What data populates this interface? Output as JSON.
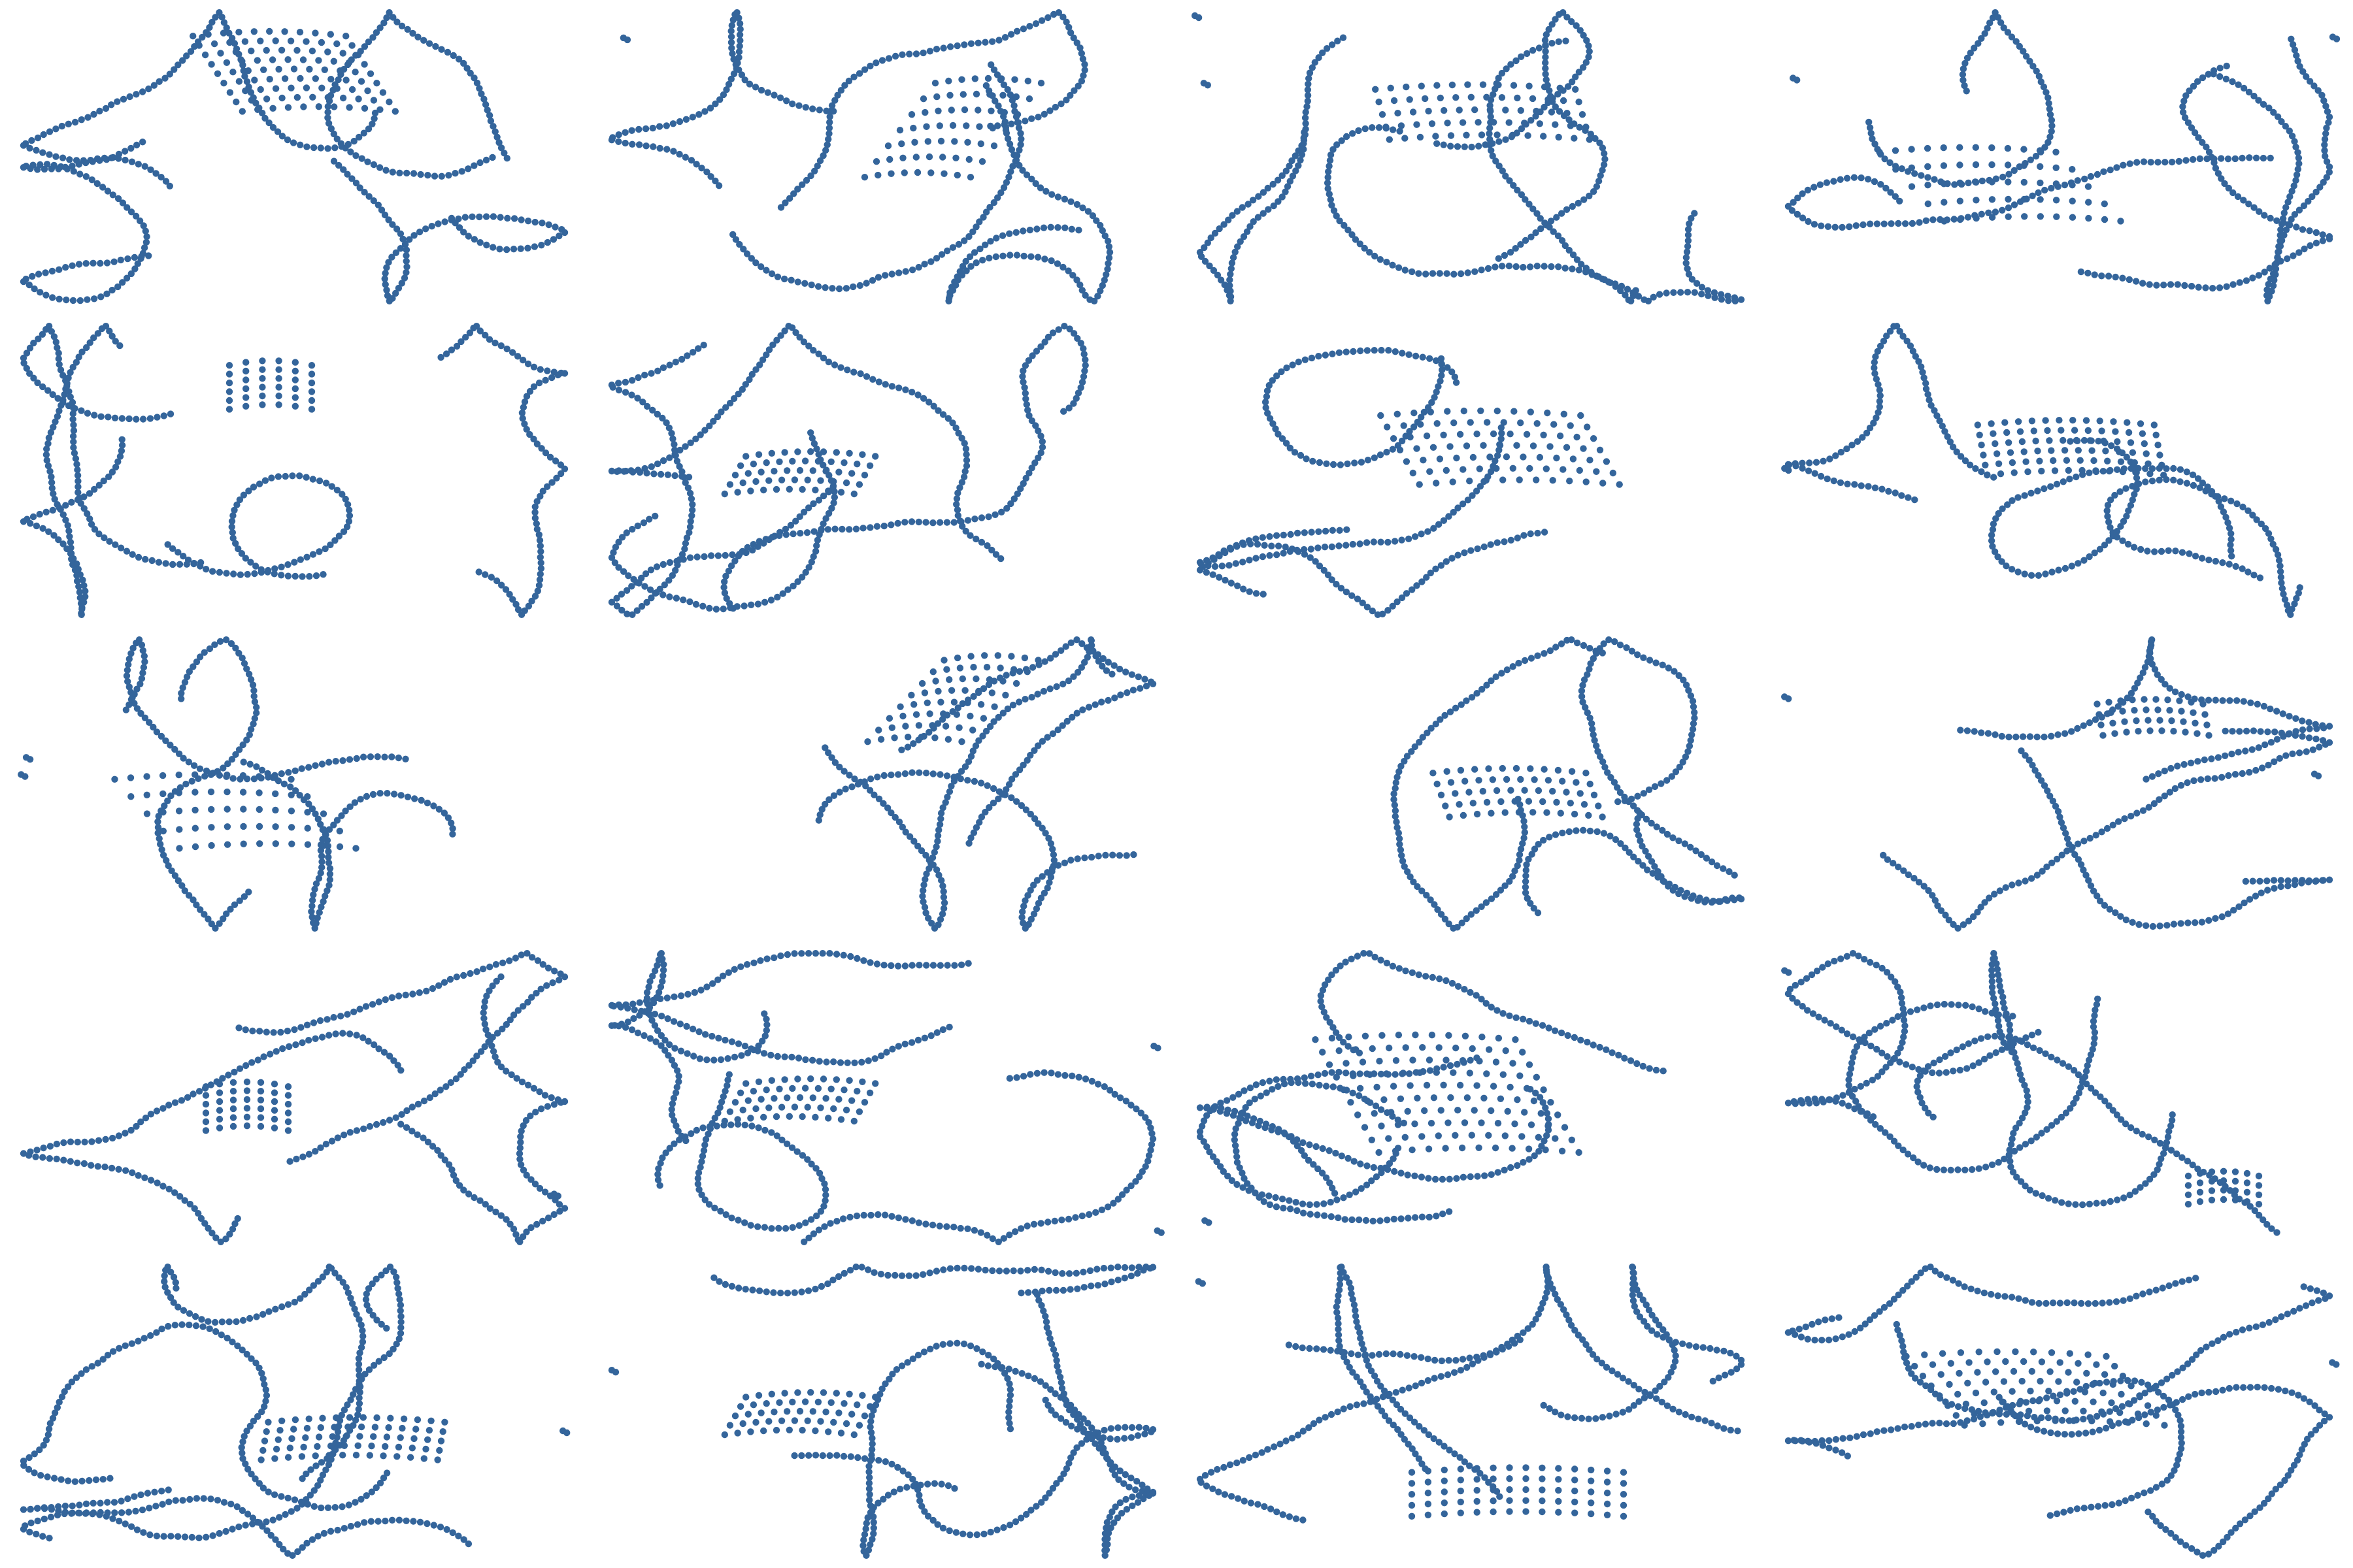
{
  "figure": {
    "rows": 5,
    "cols": 4,
    "node_color": "#34659b",
    "edge_color": "#c9cdd2",
    "background": "#ffffff"
  },
  "panels": [
    {
      "id": "r1c1",
      "dense_region": "diamond-grid"
    },
    {
      "id": "r1c2",
      "dense_region": "curved-fan"
    },
    {
      "id": "r1c3",
      "dense_region": "band"
    },
    {
      "id": "r1c4",
      "dense_region": "crescent"
    },
    {
      "id": "r2c1",
      "dense_region": "swirl"
    },
    {
      "id": "r2c2",
      "dense_region": "wedge"
    },
    {
      "id": "r2c3",
      "dense_region": "arc-grid"
    },
    {
      "id": "r2c4",
      "dense_region": "diamond"
    },
    {
      "id": "r3c1",
      "dense_region": "crescent"
    },
    {
      "id": "r3c2",
      "dense_region": "fan"
    },
    {
      "id": "r3c3",
      "dense_region": "chevron"
    },
    {
      "id": "r3c4",
      "dense_region": "oval"
    },
    {
      "id": "r4c1",
      "dense_region": "knot"
    },
    {
      "id": "r4c2",
      "dense_region": "wedge"
    },
    {
      "id": "r4c3",
      "dense_region": "large-grid"
    },
    {
      "id": "r4c4",
      "dense_region": "small-blob"
    },
    {
      "id": "r5c1",
      "dense_region": "elongated"
    },
    {
      "id": "r5c2",
      "dense_region": "wedge"
    },
    {
      "id": "r5c3",
      "dense_region": "half-ellipse"
    },
    {
      "id": "r5c4",
      "dense_region": "diamond-grid"
    }
  ]
}
